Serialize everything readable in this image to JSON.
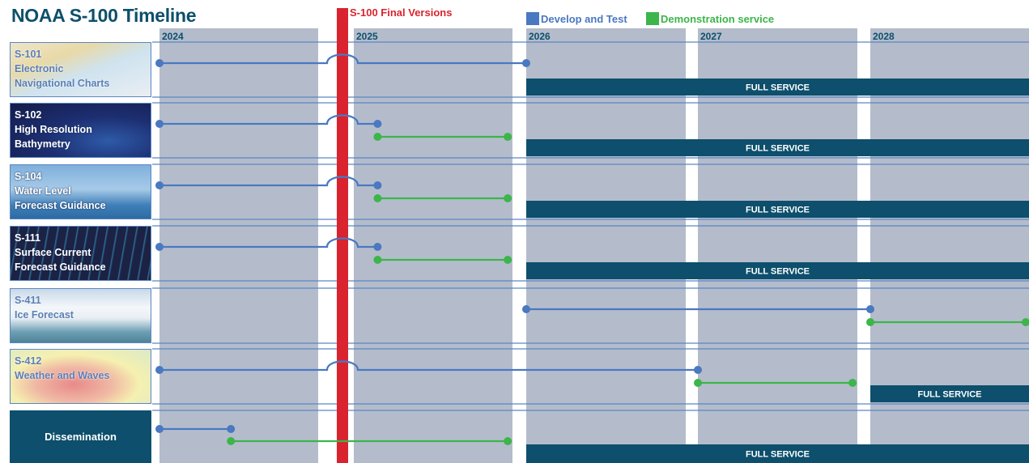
{
  "title": "NOAA S-100 Timeline",
  "final_versions_label": "S-100 Final Versions",
  "legend": {
    "develop": "Develop and Test",
    "demo": "Demonstration service"
  },
  "colors": {
    "develop": "#4a78c1",
    "demo": "#3cb54a",
    "full_service": "#0d4f6c",
    "final_marker": "#d9232e",
    "year_band": "#b4bccb",
    "row_line": "#5b86c2"
  },
  "years": [
    "2024",
    "2025",
    "2026",
    "2027",
    "2028"
  ],
  "full_service_label": "FULL SERVICE",
  "rows": [
    {
      "code": "S-101",
      "name_lines": [
        "Electronic",
        "Navigational Charts"
      ],
      "theme": "chart",
      "develop": [
        2024.0,
        2026.0
      ],
      "demo": null,
      "full_service_from": 2026.0
    },
    {
      "code": "S-102",
      "name_lines": [
        "High Resolution",
        "Bathymetry"
      ],
      "theme": "bathy",
      "develop": [
        2024.0,
        2025.15
      ],
      "demo": [
        2025.15,
        2025.97
      ],
      "full_service_from": 2026.0
    },
    {
      "code": "S-104",
      "name_lines": [
        "Water Level",
        "Forecast Guidance"
      ],
      "theme": "water",
      "develop": [
        2024.0,
        2025.15
      ],
      "demo": [
        2025.15,
        2025.97
      ],
      "full_service_from": 2026.0
    },
    {
      "code": "S-111",
      "name_lines": [
        "Surface Current",
        "Forecast Guidance"
      ],
      "theme": "current",
      "develop": [
        2024.0,
        2025.15
      ],
      "demo": [
        2025.15,
        2025.97
      ],
      "full_service_from": 2026.0
    },
    {
      "code": "S-411",
      "name_lines": [
        "Ice Forecast"
      ],
      "theme": "ice",
      "develop": [
        2026.0,
        2028.0
      ],
      "demo": [
        2028.0,
        2029.0
      ],
      "full_service_from": null
    },
    {
      "code": "S-412",
      "name_lines": [
        "Weather and Waves"
      ],
      "theme": "weather",
      "develop": [
        2024.0,
        2027.0
      ],
      "demo": [
        2027.0,
        2027.97
      ],
      "full_service_from": 2028.0
    },
    {
      "code": "",
      "name_lines": [
        "Dissemination"
      ],
      "theme": "dissem",
      "develop": [
        2024.0,
        2024.45
      ],
      "demo": [
        2024.45,
        2025.97
      ],
      "full_service_from": 2026.0
    }
  ]
}
